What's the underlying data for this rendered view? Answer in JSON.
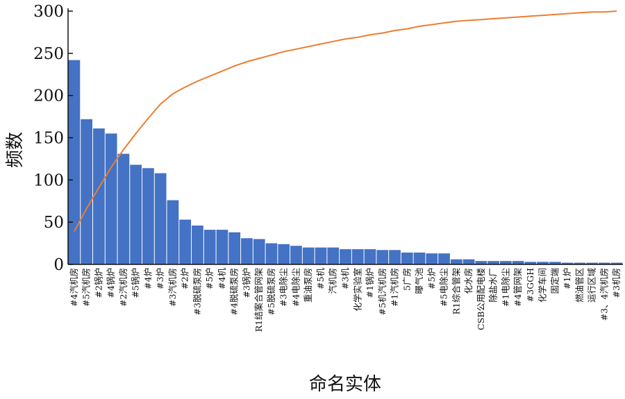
{
  "chart_data": {
    "type": "bar",
    "xlabel": "命名实体",
    "ylabel": "频数",
    "ylim": [
      0,
      300
    ],
    "yticks": [
      0,
      50,
      100,
      150,
      200,
      250,
      300
    ],
    "grid": false,
    "legend": "none",
    "bar_color": "#4472c4",
    "line_color": "#ed7d31",
    "categories": [
      "#4汽机房",
      "#5汽机房",
      "#2锅炉",
      "#4锅炉",
      "#2汽机房",
      "#5锅炉",
      "#4炉",
      "#3炉",
      "#3汽机房",
      "#2炉",
      "#3脱硫泵房",
      "#5炉",
      "#4机",
      "#4脱硫泵房",
      "#3锅炉",
      "R1结案合管网架",
      "#5脱硫泵房",
      "#3电除尘",
      "#4电除尘",
      "重油泵房",
      "#5机",
      "汽机房",
      "#3机",
      "化学实验室",
      "#1锅炉",
      "#5机汽机房",
      "#1汽机房",
      "5广房",
      "曝气池",
      "#5炉",
      "#5电除尘",
      "R1综合管架",
      "化水房",
      "CSB公用配电楼",
      "除盐水厂",
      "#1电除尘",
      "#4管网架",
      "#3GGH",
      "化学车间",
      "固定端",
      "#1炉",
      "燃油管区",
      "运行区域",
      "#3、4汽机房",
      "#3机房"
    ],
    "values": [
      242,
      172,
      161,
      155,
      131,
      118,
      114,
      108,
      76,
      53,
      46,
      41,
      41,
      38,
      31,
      30,
      25,
      24,
      22,
      20,
      20,
      20,
      18,
      18,
      18,
      17,
      17,
      14,
      14,
      13,
      13,
      6,
      6,
      4,
      4,
      4,
      4,
      3,
      3,
      3,
      2,
      2,
      2,
      2,
      2
    ],
    "cumulative_line": [
      39,
      66,
      91,
      115,
      136,
      155,
      173,
      190,
      202,
      210,
      217,
      223,
      229,
      235,
      240,
      244,
      248,
      252,
      255,
      258,
      261,
      264,
      267,
      269,
      272,
      274,
      277,
      279,
      282,
      284,
      286,
      288,
      289,
      290,
      291,
      292,
      293,
      294,
      295,
      296,
      297,
      298,
      299,
      299,
      300
    ]
  }
}
